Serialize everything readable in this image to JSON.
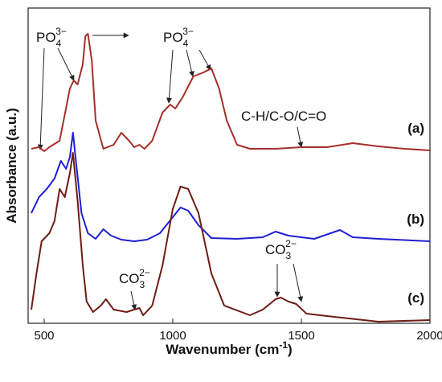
{
  "chart_data": {
    "type": "line",
    "xlabel": {
      "text": "Wavenumber (cm",
      "sup": "-1",
      "end": ")"
    },
    "ylabel": "Absorbance (a.u.)",
    "xlim": [
      450,
      2000
    ],
    "ylim": [
      0,
      392
    ],
    "xticks": [
      500,
      1000,
      1500,
      2000
    ],
    "series": [
      {
        "name": "(a)",
        "color": "#a5302a",
        "x": [
          450,
          480,
          500,
          520,
          560,
          600,
          615,
          630,
          650,
          660,
          670,
          685,
          700,
          730,
          770,
          800,
          830,
          850,
          870,
          890,
          920,
          960,
          990,
          1010,
          1040,
          1080,
          1120,
          1150,
          1180,
          1210,
          1250,
          1300,
          1400,
          1500,
          1600,
          1700,
          1800,
          1900,
          2000
        ],
        "values": [
          217,
          219,
          214,
          219,
          227,
          292,
          302,
          297,
          322,
          357,
          360,
          327,
          252,
          217,
          222,
          237,
          227,
          219,
          222,
          217,
          227,
          262,
          272,
          267,
          282,
          307,
          312,
          317,
          292,
          252,
          222,
          217,
          217,
          219,
          219,
          224,
          220,
          217,
          215
        ]
      },
      {
        "name": "(b)",
        "color": "#1f1fd8",
        "x": [
          450,
          480,
          510,
          540,
          565,
          585,
          600,
          612,
          625,
          645,
          670,
          700,
          730,
          760,
          800,
          850,
          900,
          950,
          1000,
          1030,
          1060,
          1100,
          1150,
          1250,
          1350,
          1400,
          1450,
          1550,
          1650,
          1700,
          1800,
          2000
        ],
        "values": [
          137,
          157,
          167,
          180,
          202,
          192,
          207,
          237,
          197,
          137,
          112,
          105,
          117,
          109,
          104,
          102,
          104,
          112,
          132,
          144,
          140,
          122,
          106,
          105,
          107,
          114,
          109,
          105,
          116,
          107,
          105,
          102
        ]
      },
      {
        "name": "(c)",
        "color": "#6e1c15",
        "x": [
          450,
          470,
          490,
          520,
          540,
          560,
          580,
          600,
          612,
          630,
          650,
          665,
          690,
          720,
          740,
          770,
          820,
          850,
          870,
          885,
          920,
          960,
          1000,
          1030,
          1060,
          1100,
          1150,
          1200,
          1300,
          1350,
          1400,
          1420,
          1450,
          1480,
          1520,
          1600,
          1800,
          2000
        ],
        "values": [
          17,
          62,
          102,
          112,
          127,
          167,
          157,
          187,
          212,
          152,
          72,
          27,
          14,
          22,
          30,
          17,
          14,
          17,
          19,
          10,
          22,
          72,
          142,
          170,
          167,
          137,
          62,
          22,
          10,
          17,
          30,
          32,
          27,
          24,
          12,
          9,
          2,
          4
        ]
      }
    ],
    "annotations": [
      {
        "base": "PO",
        "sub": "4",
        "sup": "3−"
      },
      {
        "base": "PO",
        "sub": "4",
        "sup": "3−"
      },
      {
        "text": "C-H/C-O/C=O"
      },
      {
        "base": "CO",
        "sub": "3",
        "sup": "2−"
      },
      {
        "base": "CO",
        "sub": "3",
        "sup": "2−"
      }
    ]
  }
}
